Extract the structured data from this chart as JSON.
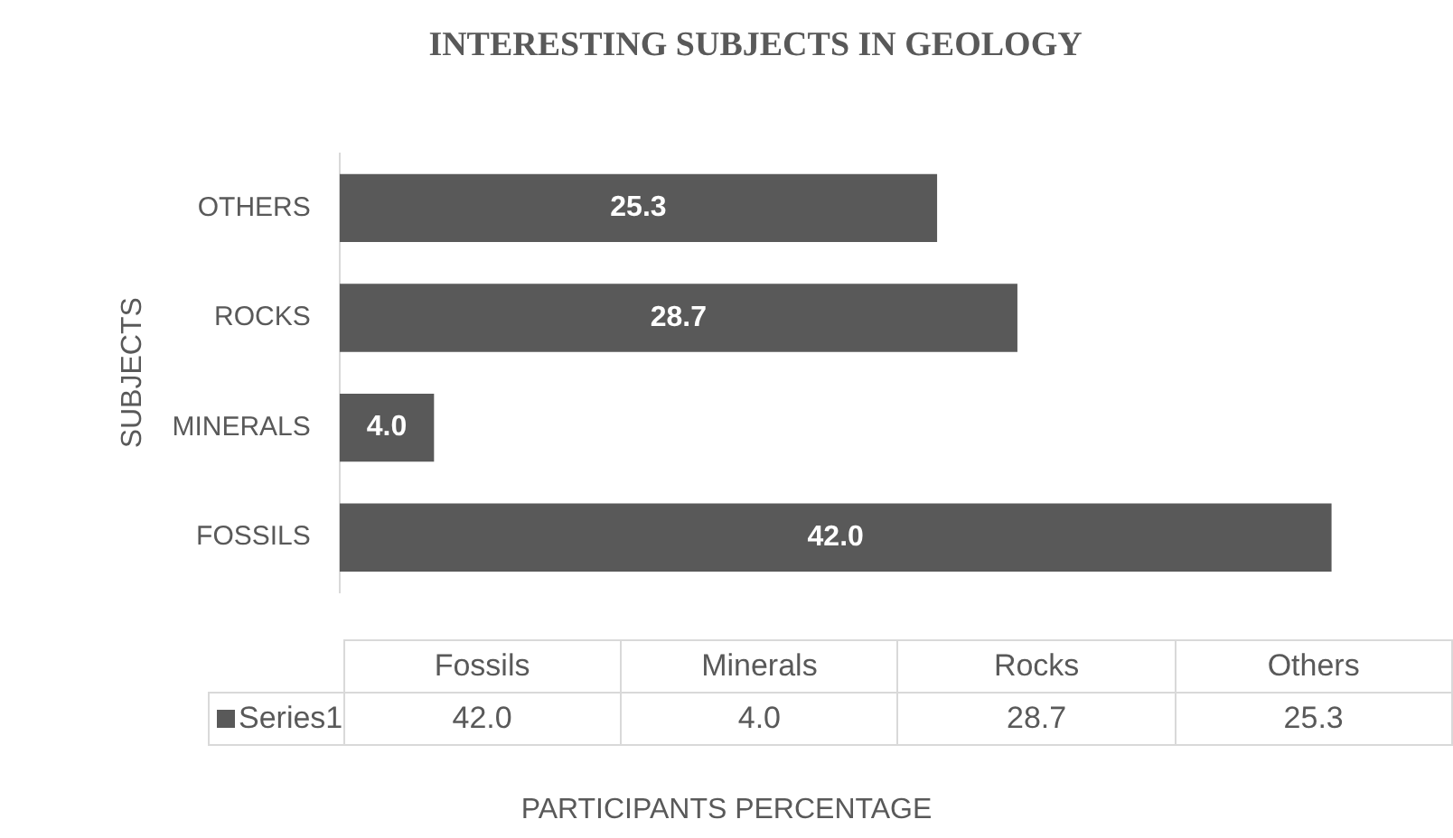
{
  "chart_data": {
    "type": "bar",
    "orientation": "horizontal",
    "title": "INTERESTING SUBJECTS IN GEOLOGY",
    "ylabel": "SUBJECTS",
    "categories": [
      "OTHERS",
      "ROCKS",
      "MINERALS",
      "FOSSILS"
    ],
    "series": [
      {
        "name": "Series1",
        "color": "#595959",
        "values": [
          25.3,
          28.7,
          4.0,
          42.0
        ],
        "value_labels": [
          "25.3",
          "28.7",
          "4.0",
          "42.0"
        ]
      }
    ],
    "annotations": [
      "Fossils",
      "Minerals",
      "Rocks",
      "Others",
      "PARTICIPANTS PERCENTAGE"
    ],
    "grid": false
  }
}
